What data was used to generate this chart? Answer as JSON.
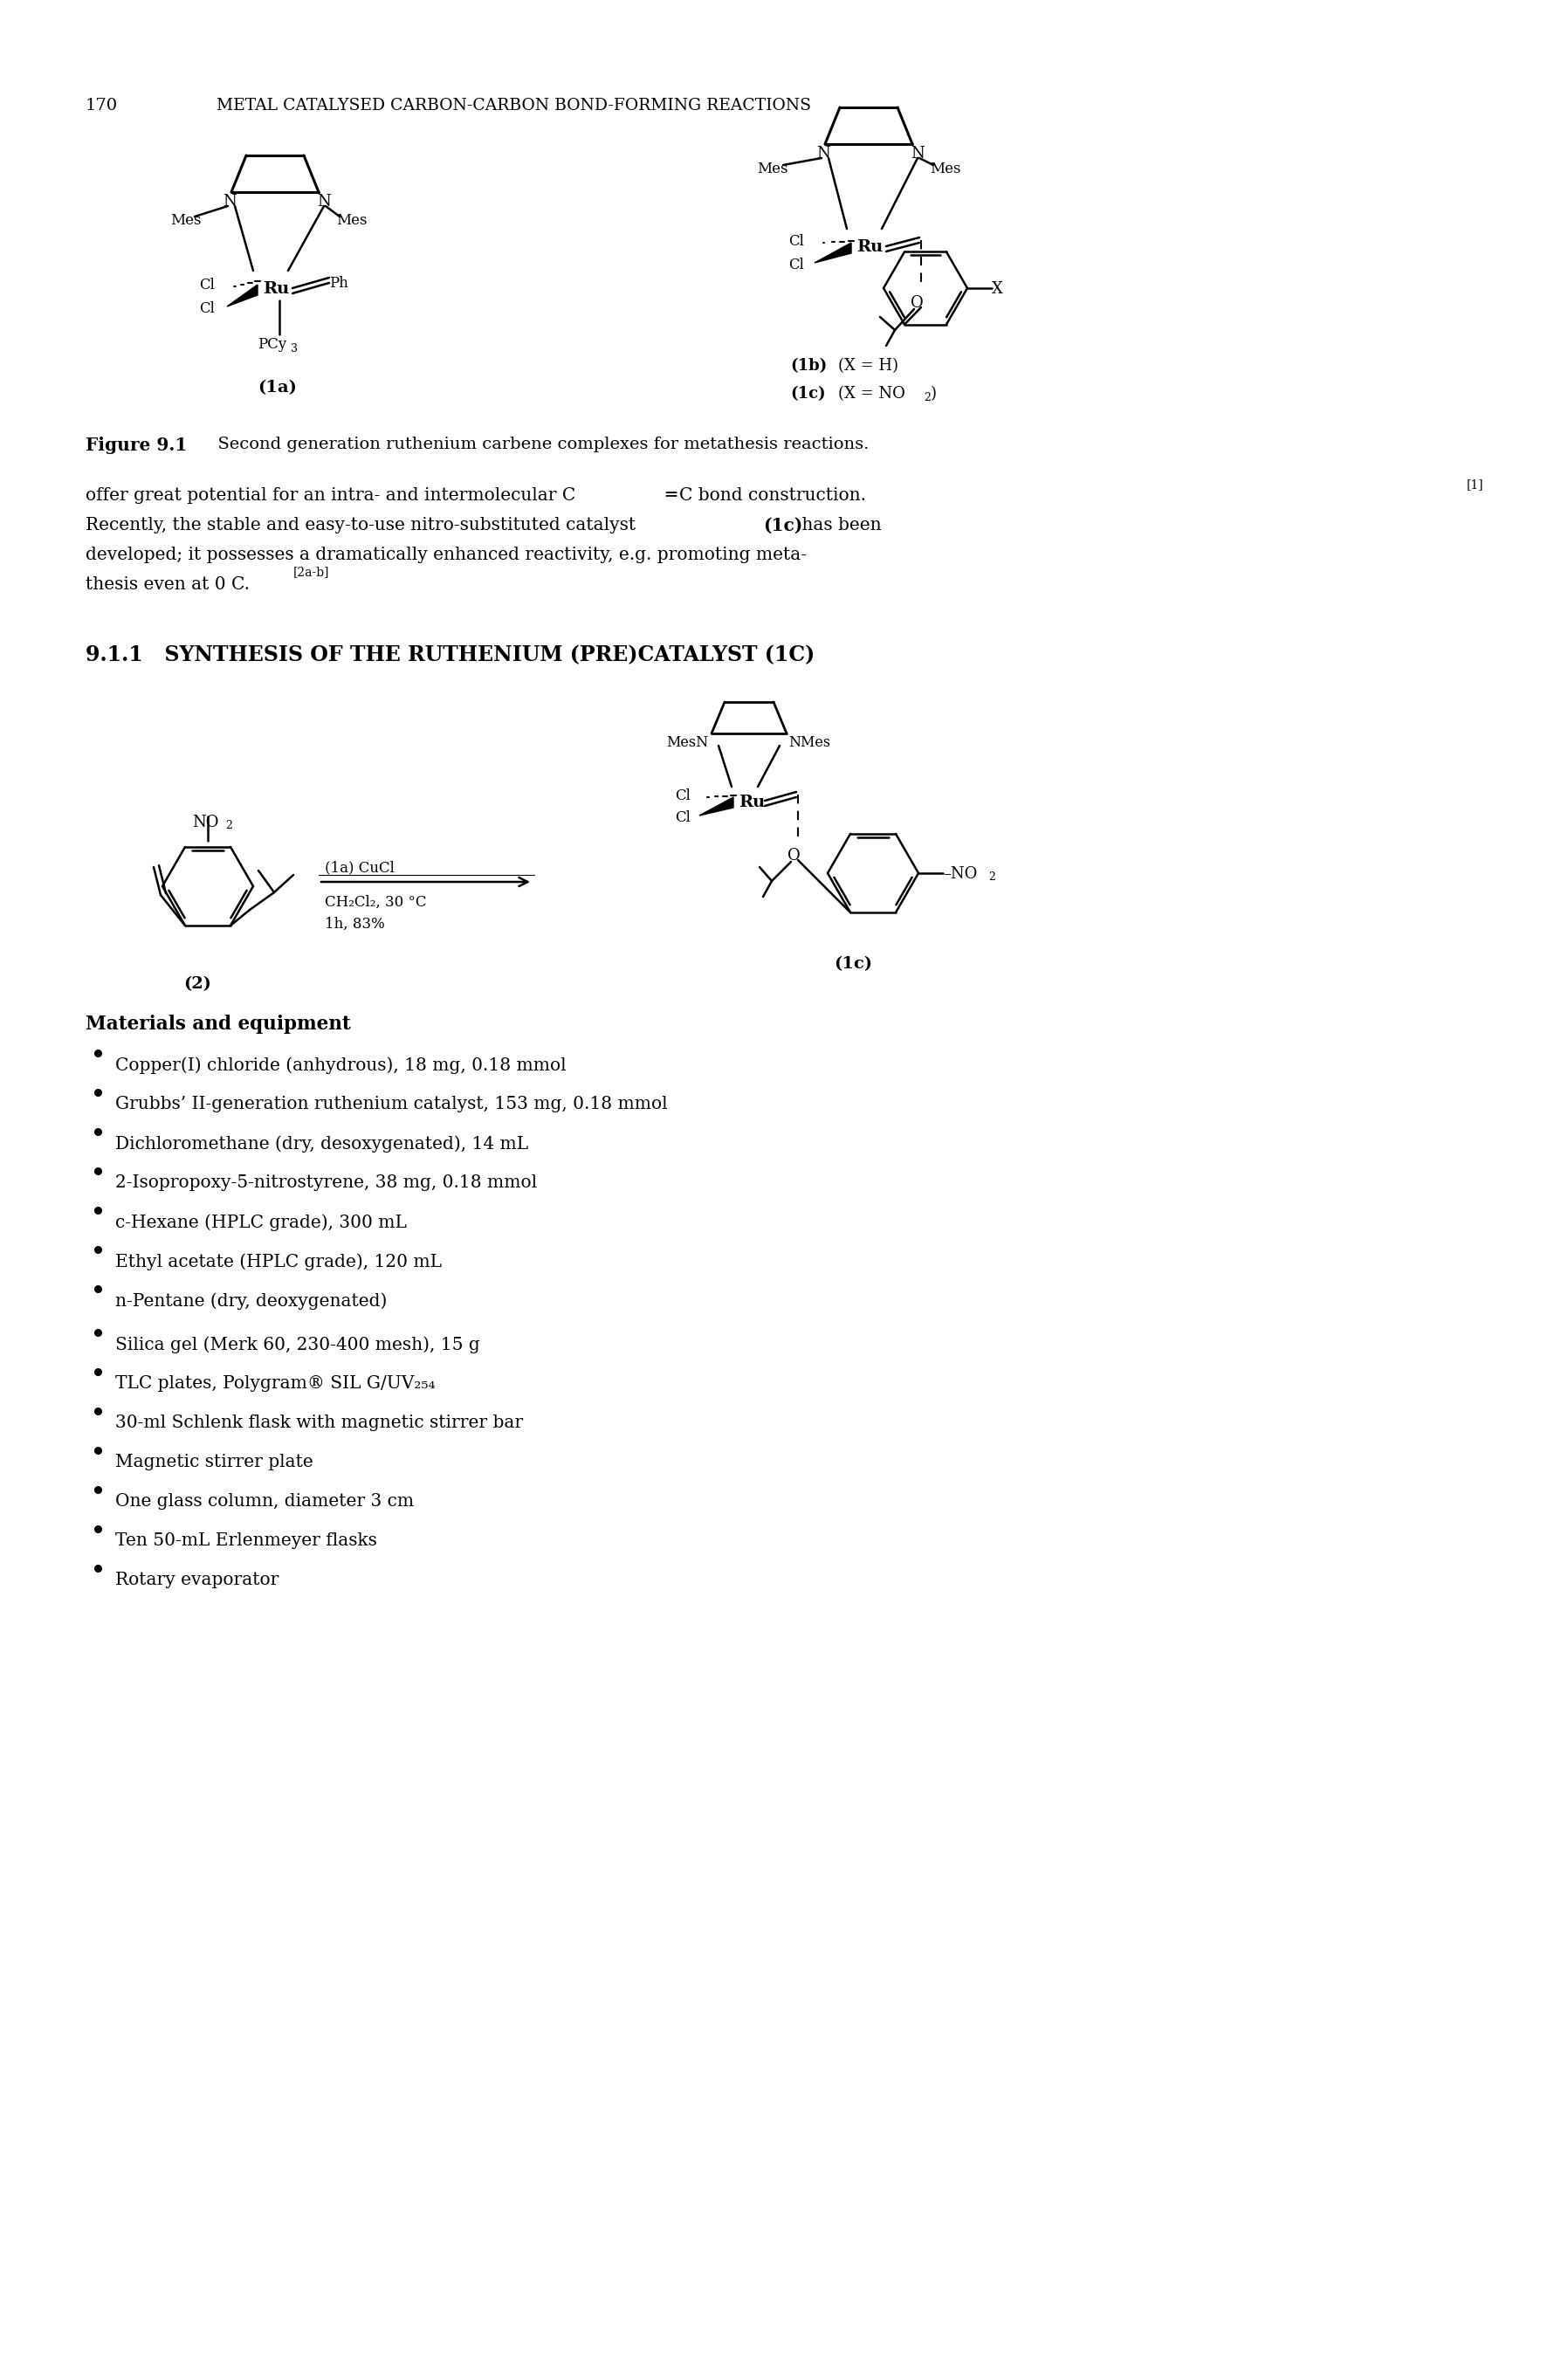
{
  "page_number": "170",
  "header": "METAL CATALYSED CARBON-CARBON BOND-FORMING REACTIONS",
  "figure_caption_bold": "Figure 9.1",
  "figure_caption_text": "Second generation ruthenium carbene complexes for metathesis reactions.",
  "body_lines": [
    {
      "text": "offer great potential for an intra- and intermolecular C═C bond construction.",
      "sup": "[1]"
    },
    {
      "text": "Recently, the stable and easy-to-use nitro-substituted catalyst (1c) has been",
      "bold_parts": [
        "(1c)"
      ]
    },
    {
      "text": "developed; it possesses a dramatically enhanced reactivity, e.g. promoting meta-"
    },
    {
      "text": "thesis even at 0 C.",
      "sup": "[2a-b]"
    }
  ],
  "section_heading": "9.1.1   SYNTHESIS OF THE RUTHENIUM (PRE)CATALYST (1C)",
  "materials_heading": "Materials and equipment",
  "bullet_points_1": [
    "Copper(I) chloride (anhydrous), 18 mg, 0.18 mmol",
    "Grubbs’ II-generation ruthenium catalyst, 153 mg, 0.18 mmol",
    "Dichloromethane (dry, desoxygenated), 14 mL",
    "2-Isopropoxy-5-nitrostyrene, 38 mg, 0.18 mmol",
    "c-Hexane (HPLC grade), 300 mL",
    "Ethyl acetate (HPLC grade), 120 mL",
    "n-Pentane (dry, deoxygenated)"
  ],
  "bullet_points_2": [
    "Silica gel (Merk 60, 230-400 mesh), 15 g",
    "TLC plates, Polygram® SIL G/UV₂₅₄",
    "30-ml Schlenk flask with magnetic stirrer bar",
    "Magnetic stirrer plate",
    "One glass column, diameter 3 cm",
    "Ten 50-mL Erlenmeyer flasks",
    "Rotary evaporator"
  ],
  "bg_color": "#ffffff",
  "text_color": "#000000"
}
